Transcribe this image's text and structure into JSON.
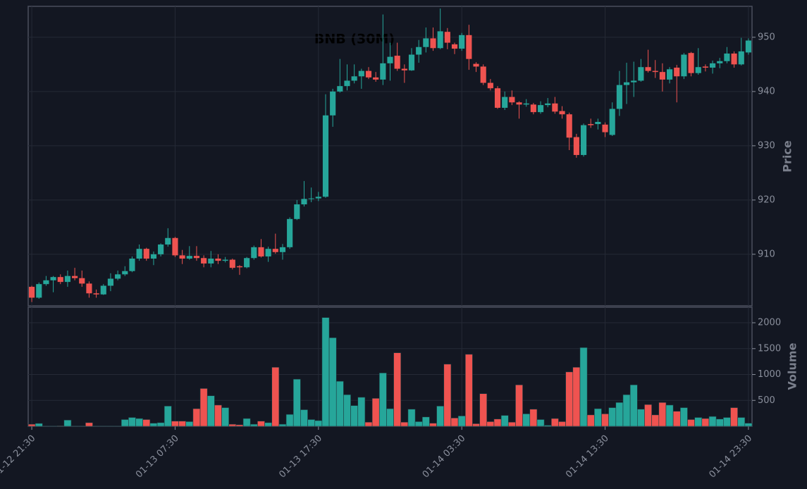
{
  "chart_data": [
    {
      "type": "candlestick",
      "title": "BNB (30M)",
      "ylabel": "Price",
      "up_color": "#26a69a",
      "down_color": "#ef5350",
      "grid": true,
      "ylim": [
        900.5,
        955.7
      ],
      "yticks": [
        910,
        920,
        930,
        940,
        950
      ],
      "xticks": [
        {
          "value": 0,
          "label": "01-12 21:30"
        },
        {
          "value": 20,
          "label": "01-13 07:30"
        },
        {
          "value": 40,
          "label": "01-13 17:30"
        },
        {
          "value": 60,
          "label": "01-14 03:30"
        },
        {
          "value": 80,
          "label": "01-14 13:30"
        },
        {
          "value": 100,
          "label": "01-14 23:30"
        }
      ],
      "open": [
        904,
        902,
        904.5,
        905.2,
        905.8,
        904.9,
        906,
        905.6,
        904.6,
        902.8,
        902.6,
        904.2,
        905.5,
        906.3,
        906.9,
        909.2,
        911,
        909.2,
        910,
        911.8,
        913,
        909.8,
        909.2,
        909.7,
        909.3,
        908.3,
        909.2,
        908.8,
        909,
        907.8,
        907.6,
        909.3,
        911.3,
        909.6,
        911,
        910.4,
        911.3,
        916.5,
        919.2,
        920.2,
        920.3,
        920.6,
        935.6,
        940,
        941,
        942,
        942.8,
        943.8,
        942.6,
        942.2,
        945.2,
        946.6,
        944.2,
        943.9,
        946.8,
        948.2,
        949.8,
        948,
        951,
        948.7,
        947.9,
        950.4,
        945.1,
        944.6,
        941.6,
        940.6,
        937,
        939,
        938,
        937.6,
        937.6,
        936.2,
        937.5,
        937.8,
        936.4,
        935.8,
        931.6,
        928.3,
        934,
        934,
        933.9,
        932,
        936.8,
        941.2,
        941.7,
        942,
        944.5,
        943.8,
        943.6,
        942.2,
        944.4,
        942.8,
        947.1,
        943.4,
        944.6,
        944.4,
        945.2,
        945.6,
        947,
        945,
        947.2
      ],
      "high": [
        904.2,
        904.8,
        906,
        906,
        906.3,
        907,
        907.5,
        907,
        905,
        903.5,
        904.5,
        906.5,
        907,
        907.8,
        909.6,
        911.8,
        911.2,
        910.5,
        912,
        914.8,
        913.2,
        910.8,
        911.5,
        911.5,
        909.8,
        910.6,
        910,
        909.5,
        909.2,
        908,
        909.5,
        911.6,
        912.8,
        911.4,
        913.8,
        911.9,
        916.8,
        920,
        923.5,
        922.3,
        921.5,
        939.5,
        940.5,
        946,
        945,
        945,
        944.2,
        944.5,
        943.6,
        954.2,
        949,
        949,
        945,
        948,
        949.5,
        951.8,
        951.8,
        955.3,
        951.7,
        949,
        950.8,
        952.3,
        945.4,
        945,
        942.3,
        941,
        940,
        940.2,
        938.2,
        938.6,
        937.9,
        938.2,
        938.8,
        939,
        937.3,
        936.1,
        932.2,
        934.1,
        935,
        935,
        934.3,
        938,
        943.8,
        945.3,
        945.5,
        946,
        947.7,
        945.8,
        945.2,
        944.5,
        944.9,
        947.1,
        947.3,
        948,
        945,
        945.7,
        946.2,
        948.2,
        947.4,
        949.9,
        949.8
      ],
      "low": [
        901.2,
        901.8,
        904.2,
        903,
        904.5,
        904,
        905.2,
        904,
        902,
        902,
        902.5,
        903.2,
        905.2,
        906,
        906.7,
        908.8,
        908.8,
        908,
        909.6,
        911.4,
        909.5,
        908.2,
        909,
        908.8,
        907.6,
        907.6,
        908.2,
        908.5,
        907.2,
        906.2,
        907.4,
        909,
        909.4,
        908.6,
        910.1,
        909,
        911,
        916.3,
        918.8,
        919.6,
        919.8,
        920.4,
        933.5,
        939.8,
        940.2,
        941.5,
        940.5,
        942.3,
        941.8,
        941.2,
        942,
        943.8,
        941.6,
        943.8,
        945.3,
        947.2,
        947.5,
        947.8,
        947.8,
        946.9,
        947.5,
        944,
        943.6,
        941.2,
        940.2,
        936.8,
        936.6,
        937.5,
        935,
        937.2,
        935.8,
        935.9,
        937.1,
        935.9,
        935,
        929.2,
        927.8,
        928,
        933.3,
        933,
        931.6,
        931.8,
        935.5,
        937.7,
        939,
        941.8,
        943.5,
        942.5,
        940,
        941.5,
        938,
        942.3,
        942.8,
        943.1,
        943.7,
        943.3,
        944.3,
        945.2,
        944.4,
        944.8,
        946.8
      ],
      "close": [
        902,
        904.5,
        905.2,
        905.8,
        904.9,
        906,
        905.6,
        904.6,
        902.8,
        902.6,
        904.2,
        905.5,
        906.3,
        906.9,
        909.2,
        911,
        909.2,
        910,
        911.8,
        913,
        909.8,
        909.2,
        909.7,
        909.3,
        908.3,
        909.2,
        908.8,
        909,
        907.5,
        907.6,
        909.3,
        911.3,
        909.6,
        911,
        910.4,
        911.3,
        916.5,
        919.2,
        920.2,
        920.3,
        920.6,
        935.6,
        940,
        941,
        942,
        942.8,
        943.8,
        942.6,
        942.2,
        945.2,
        946.4,
        944.2,
        943.9,
        946.8,
        948.2,
        949.8,
        948,
        951.1,
        949,
        947.9,
        950.4,
        946,
        944.6,
        941.6,
        940.6,
        937,
        939,
        938,
        937.6,
        937.8,
        936.2,
        937.5,
        937.8,
        936.3,
        935.8,
        931.5,
        928.3,
        933.8,
        933.8,
        934.4,
        932.5,
        936.8,
        941.2,
        941.7,
        942,
        944.5,
        943.8,
        943.6,
        942.2,
        944.1,
        942.8,
        946.8,
        943.4,
        944.5,
        944.4,
        945.2,
        945.6,
        947,
        945,
        947.4,
        949.4
      ]
    },
    {
      "type": "bar",
      "ylabel": "Volume",
      "grid": true,
      "ylim": [
        0,
        2300
      ],
      "yticks": [
        500,
        1000,
        1500,
        2000
      ],
      "values": [
        40,
        55,
        5,
        5,
        10,
        120,
        5,
        5,
        70,
        5,
        5,
        5,
        5,
        130,
        170,
        150,
        130,
        60,
        70,
        390,
        100,
        100,
        90,
        340,
        730,
        590,
        410,
        360,
        40,
        30,
        150,
        40,
        100,
        70,
        1140,
        40,
        230,
        910,
        320,
        130,
        110,
        2100,
        1710,
        870,
        610,
        400,
        560,
        80,
        540,
        1030,
        340,
        1420,
        80,
        330,
        90,
        180,
        60,
        390,
        1200,
        160,
        200,
        1390,
        50,
        630,
        90,
        140,
        210,
        80,
        800,
        240,
        330,
        130,
        20,
        150,
        90,
        1050,
        1140,
        1520,
        220,
        340,
        240,
        360,
        460,
        610,
        800,
        330,
        420,
        220,
        460,
        410,
        290,
        360,
        130,
        170,
        150,
        190,
        140,
        170,
        360,
        170,
        60
      ]
    }
  ]
}
